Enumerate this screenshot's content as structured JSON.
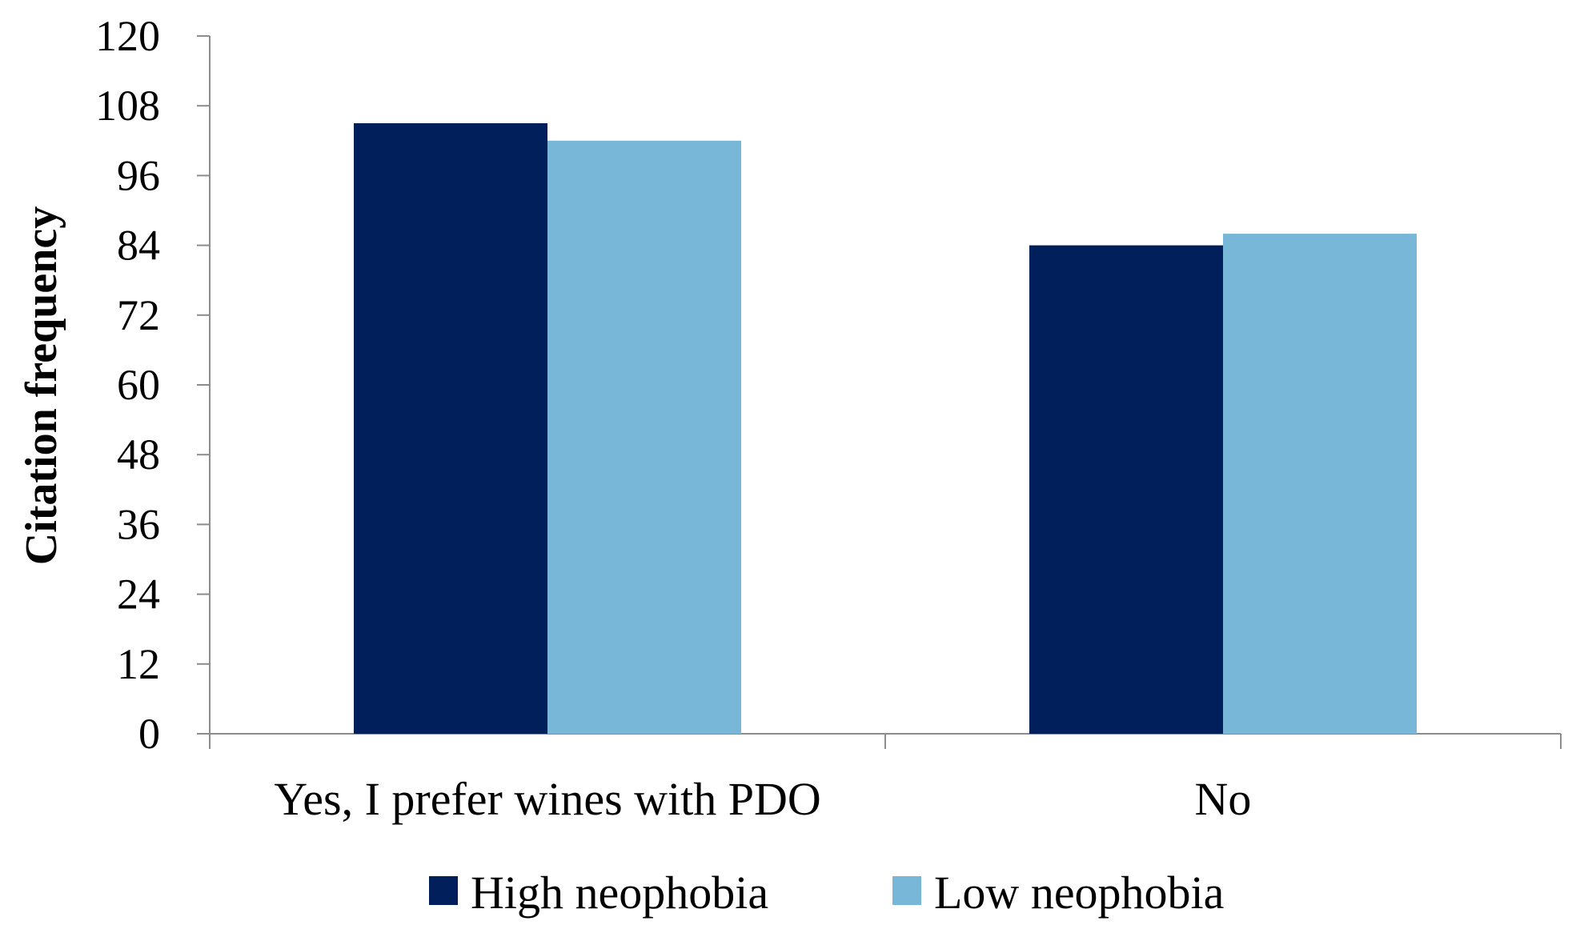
{
  "chart_data": {
    "type": "bar",
    "title": "",
    "xlabel": "",
    "ylabel": "Citation frequency",
    "ylim": [
      0,
      120
    ],
    "yticks": [
      0,
      12,
      24,
      36,
      48,
      60,
      72,
      84,
      96,
      108,
      120
    ],
    "grid": false,
    "legend_position": "bottom",
    "categories": [
      "Yes, I prefer wines with PDO",
      "No"
    ],
    "series": [
      {
        "name": "High neophobia",
        "color": "#001f5b",
        "values": [
          105,
          84
        ]
      },
      {
        "name": "Low neophobia",
        "color": "#78b7d8",
        "values": [
          102,
          86
        ]
      }
    ]
  }
}
